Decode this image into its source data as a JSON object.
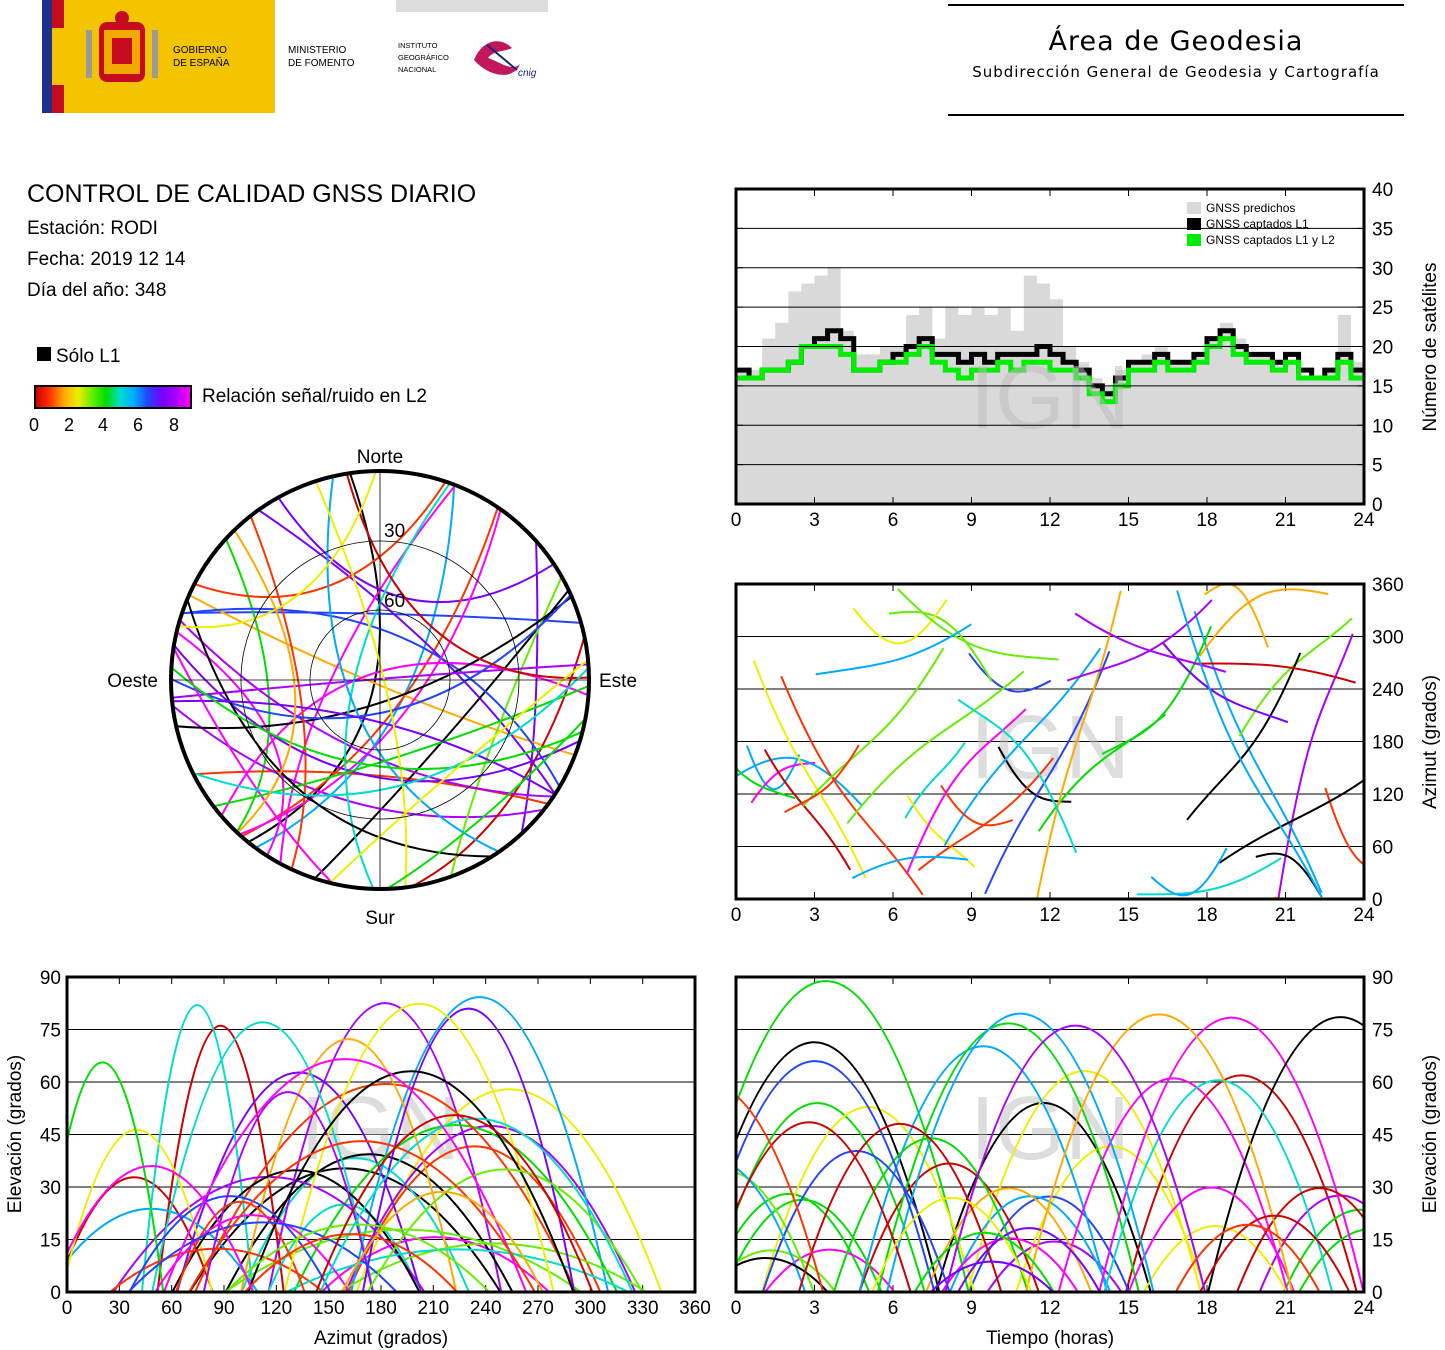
{
  "header": {
    "gov_line1": "GOBIERNO",
    "gov_line2": "DE ESPAÑA",
    "min_line1": "MINISTERIO",
    "min_line2": "DE FOMENTO",
    "ign_line1": "INSTITUTO",
    "ign_line2": "GEOGRÁFICO",
    "ign_line3": "NACIONAL",
    "cnig": "cnig",
    "area_title": "Área de Geodesia",
    "area_subtitle": "Subdirección General de Geodesia y Cartografía"
  },
  "info": {
    "title": "CONTROL DE CALIDAD GNSS DIARIO",
    "station": "Estación: RODI",
    "date": "Fecha: 2019 12 14",
    "doy": "Día del año: 348"
  },
  "legend": {
    "l1_only": "Sólo L1",
    "snr_label": "Relación señal/ruido en L2",
    "snr_ticks": [
      "0",
      "2",
      "4",
      "6",
      "8"
    ]
  },
  "watermark": "IGN",
  "colors": {
    "predicted": "#d9d9d9",
    "l1": "#000000",
    "l1l2": "#00ee00",
    "snr_scale": [
      "#cc0000",
      "#ff3300",
      "#ffaa00",
      "#eeee00",
      "#66ee00",
      "#00dd00",
      "#00ddcc",
      "#00aaff",
      "#2244ff",
      "#7700ff",
      "#aa00ff",
      "#ff00ff"
    ]
  },
  "chart_data": [
    {
      "type": "polar",
      "name": "skyplot",
      "labels": {
        "north": "Norte",
        "south": "Sur",
        "east": "Este",
        "west": "Oeste"
      },
      "rings": [
        "30",
        "60"
      ]
    },
    {
      "type": "area",
      "name": "satellites",
      "ylabel": "Número de satélites",
      "xlim": [
        0,
        24
      ],
      "ylim": [
        0,
        40
      ],
      "xticks": [
        "0",
        "3",
        "6",
        "9",
        "12",
        "15",
        "18",
        "21",
        "24"
      ],
      "yticks": [
        "0",
        "5",
        "10",
        "15",
        "20",
        "25",
        "30",
        "35",
        "40"
      ],
      "legend_placement": "top-right",
      "series": [
        {
          "name": "GNSS predichos",
          "x": [
            0,
            0.5,
            1,
            1.5,
            2,
            2.5,
            3,
            3.5,
            4,
            4.5,
            5,
            5.5,
            6,
            6.5,
            7,
            7.5,
            8,
            8.5,
            9,
            9.5,
            10,
            10.5,
            11,
            11.5,
            12,
            12.5,
            13,
            13.5,
            14,
            14.5,
            15,
            15.5,
            16,
            16.5,
            17,
            17.5,
            18,
            18.5,
            19,
            19.5,
            20,
            20.5,
            21,
            21.5,
            22,
            22.5,
            23,
            23.5,
            24
          ],
          "values": [
            17,
            17,
            21,
            23,
            27,
            28,
            29,
            30,
            22,
            19,
            19,
            20,
            20,
            24,
            25,
            21,
            25,
            24,
            25,
            24,
            25,
            22,
            29,
            28,
            26,
            20,
            18,
            16,
            15,
            17,
            18,
            19,
            20,
            18,
            18,
            19,
            21,
            23,
            21,
            19,
            19,
            18,
            18,
            16,
            16,
            17,
            24,
            18,
            18
          ]
        },
        {
          "name": "GNSS captados L1",
          "x": [
            0,
            0.5,
            1,
            1.5,
            2,
            2.5,
            3,
            3.5,
            4,
            4.5,
            5,
            5.5,
            6,
            6.5,
            7,
            7.5,
            8,
            8.5,
            9,
            9.5,
            10,
            10.5,
            11,
            11.5,
            12,
            12.5,
            13,
            13.5,
            14,
            14.5,
            15,
            15.5,
            16,
            16.5,
            17,
            17.5,
            18,
            18.5,
            19,
            19.5,
            20,
            20.5,
            21,
            21.5,
            22,
            22.5,
            23,
            23.5,
            24
          ],
          "values": [
            17,
            16,
            17,
            17,
            18,
            20,
            21,
            22,
            21,
            17,
            17,
            18,
            19,
            20,
            21,
            19,
            19,
            18,
            19,
            18,
            19,
            19,
            19,
            20,
            19,
            18,
            17,
            15,
            14,
            16,
            18,
            18,
            19,
            18,
            18,
            19,
            21,
            22,
            20,
            19,
            19,
            18,
            19,
            17,
            16,
            17,
            19,
            17,
            18
          ]
        },
        {
          "name": "GNSS captados L1 y L2",
          "x": [
            0,
            0.5,
            1,
            1.5,
            2,
            2.5,
            3,
            3.5,
            4,
            4.5,
            5,
            5.5,
            6,
            6.5,
            7,
            7.5,
            8,
            8.5,
            9,
            9.5,
            10,
            10.5,
            11,
            11.5,
            12,
            12.5,
            13,
            13.5,
            14,
            14.5,
            15,
            15.5,
            16,
            16.5,
            17,
            17.5,
            18,
            18.5,
            19,
            19.5,
            20,
            20.5,
            21,
            21.5,
            22,
            22.5,
            23,
            23.5,
            24
          ],
          "values": [
            16,
            16,
            17,
            17,
            18,
            20,
            20,
            20,
            19,
            17,
            17,
            18,
            18,
            19,
            20,
            18,
            17,
            16,
            17,
            17,
            18,
            17,
            18,
            18,
            17,
            17,
            16,
            14,
            13,
            15,
            17,
            17,
            18,
            17,
            17,
            18,
            20,
            21,
            19,
            18,
            18,
            17,
            18,
            16,
            16,
            16,
            18,
            16,
            17
          ]
        }
      ]
    },
    {
      "type": "scatter",
      "name": "azimuth-vs-time",
      "ylabel": "Azimut (grados)",
      "xlim": [
        0,
        24
      ],
      "ylim": [
        0,
        360
      ],
      "xticks": [
        "0",
        "3",
        "6",
        "9",
        "12",
        "15",
        "18",
        "21",
        "24"
      ],
      "yticks": [
        "0",
        "60",
        "120",
        "180",
        "240",
        "300",
        "360"
      ]
    },
    {
      "type": "scatter",
      "name": "elevation-vs-azimuth",
      "xlabel": "Azimut (grados)",
      "ylabel": "Elevación (grados)",
      "xlim": [
        0,
        360
      ],
      "ylim": [
        0,
        90
      ],
      "xticks": [
        "0",
        "30",
        "60",
        "90",
        "120",
        "150",
        "180",
        "210",
        "240",
        "270",
        "300",
        "330",
        "360"
      ],
      "yticks": [
        "0",
        "15",
        "30",
        "45",
        "60",
        "75",
        "90"
      ]
    },
    {
      "type": "scatter",
      "name": "elevation-vs-time",
      "xlabel": "Tiempo (horas)",
      "ylabel": "Elevación (grados)",
      "xlim": [
        0,
        24
      ],
      "ylim": [
        0,
        90
      ],
      "xticks": [
        "0",
        "3",
        "6",
        "9",
        "12",
        "15",
        "18",
        "21",
        "24"
      ],
      "yticks": [
        "0",
        "15",
        "30",
        "45",
        "60",
        "75",
        "90"
      ]
    }
  ]
}
